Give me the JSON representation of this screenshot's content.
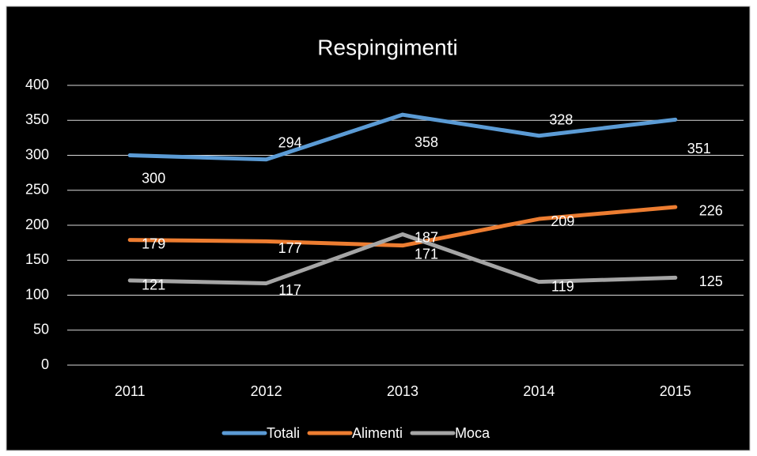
{
  "chart_data": {
    "type": "line",
    "title": "Respingimenti",
    "categories": [
      "2011",
      "2012",
      "2013",
      "2014",
      "2015"
    ],
    "series": [
      {
        "name": "Totali",
        "color": "#5b9bd5",
        "values": [
          300,
          294,
          358,
          328,
          351
        ]
      },
      {
        "name": "Alimenti",
        "color": "#ed7d31",
        "values": [
          179,
          177,
          171,
          209,
          226
        ]
      },
      {
        "name": "Moca",
        "color": "#a5a5a5",
        "values": [
          121,
          117,
          187,
          119,
          125
        ]
      }
    ],
    "ylim": [
      0,
      400
    ],
    "yticks": [
      0,
      50,
      100,
      150,
      200,
      250,
      300,
      350,
      400
    ],
    "grid": true,
    "legend": "bottom"
  }
}
